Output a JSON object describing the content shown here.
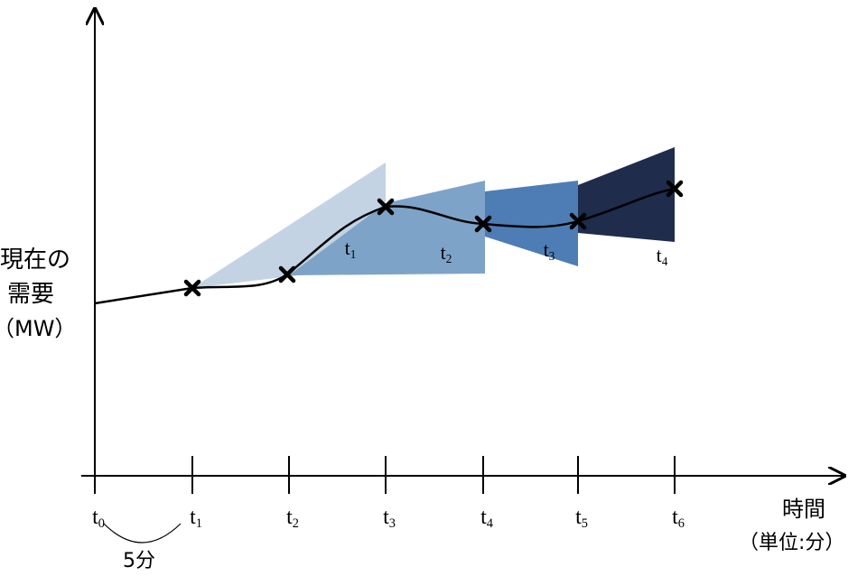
{
  "y_axis_label": [
    "現在の",
    "需要",
    "（MW）"
  ],
  "x_axis_label": [
    "時間",
    "（単位:分）"
  ],
  "ticks": [
    {
      "base": "t",
      "sub": "0"
    },
    {
      "base": "t",
      "sub": "1"
    },
    {
      "base": "t",
      "sub": "2"
    },
    {
      "base": "t",
      "sub": "3"
    },
    {
      "base": "t",
      "sub": "4"
    },
    {
      "base": "t",
      "sub": "5"
    },
    {
      "base": "t",
      "sub": "6"
    }
  ],
  "cones": [
    {
      "base": "t",
      "sub": "1"
    },
    {
      "base": "t",
      "sub": "2"
    },
    {
      "base": "t",
      "sub": "3"
    },
    {
      "base": "t",
      "sub": "4"
    }
  ],
  "interval_label": "5分"
}
